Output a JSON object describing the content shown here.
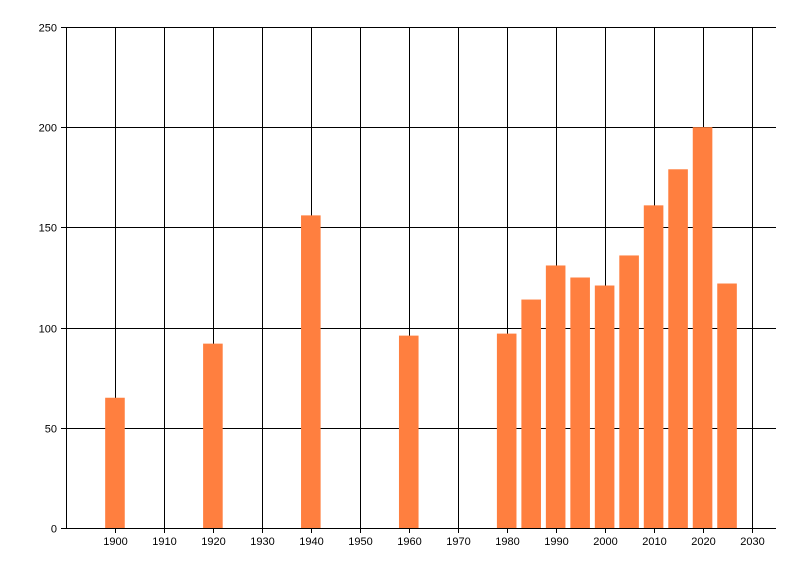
{
  "chart_data": {
    "type": "bar",
    "title": "",
    "xlabel": "",
    "ylabel": "",
    "x": [
      1900,
      1920,
      1940,
      1960,
      1980,
      1985,
      1990,
      1995,
      2000,
      2005,
      2010,
      2015,
      2020,
      2025
    ],
    "values": [
      65,
      92,
      156,
      96,
      97,
      114,
      131,
      125,
      121,
      136,
      161,
      179,
      200,
      122
    ],
    "xlim": [
      1890,
      2035
    ],
    "ylim": [
      0,
      250
    ],
    "xticks": [
      1900,
      1910,
      1920,
      1930,
      1940,
      1950,
      1960,
      1970,
      1980,
      1990,
      2000,
      2010,
      2020,
      2030
    ],
    "yticks": [
      0,
      50,
      100,
      150,
      200,
      250
    ],
    "grid": true,
    "bar_color": "#ff7f3f",
    "axis_color": "#000000"
  }
}
